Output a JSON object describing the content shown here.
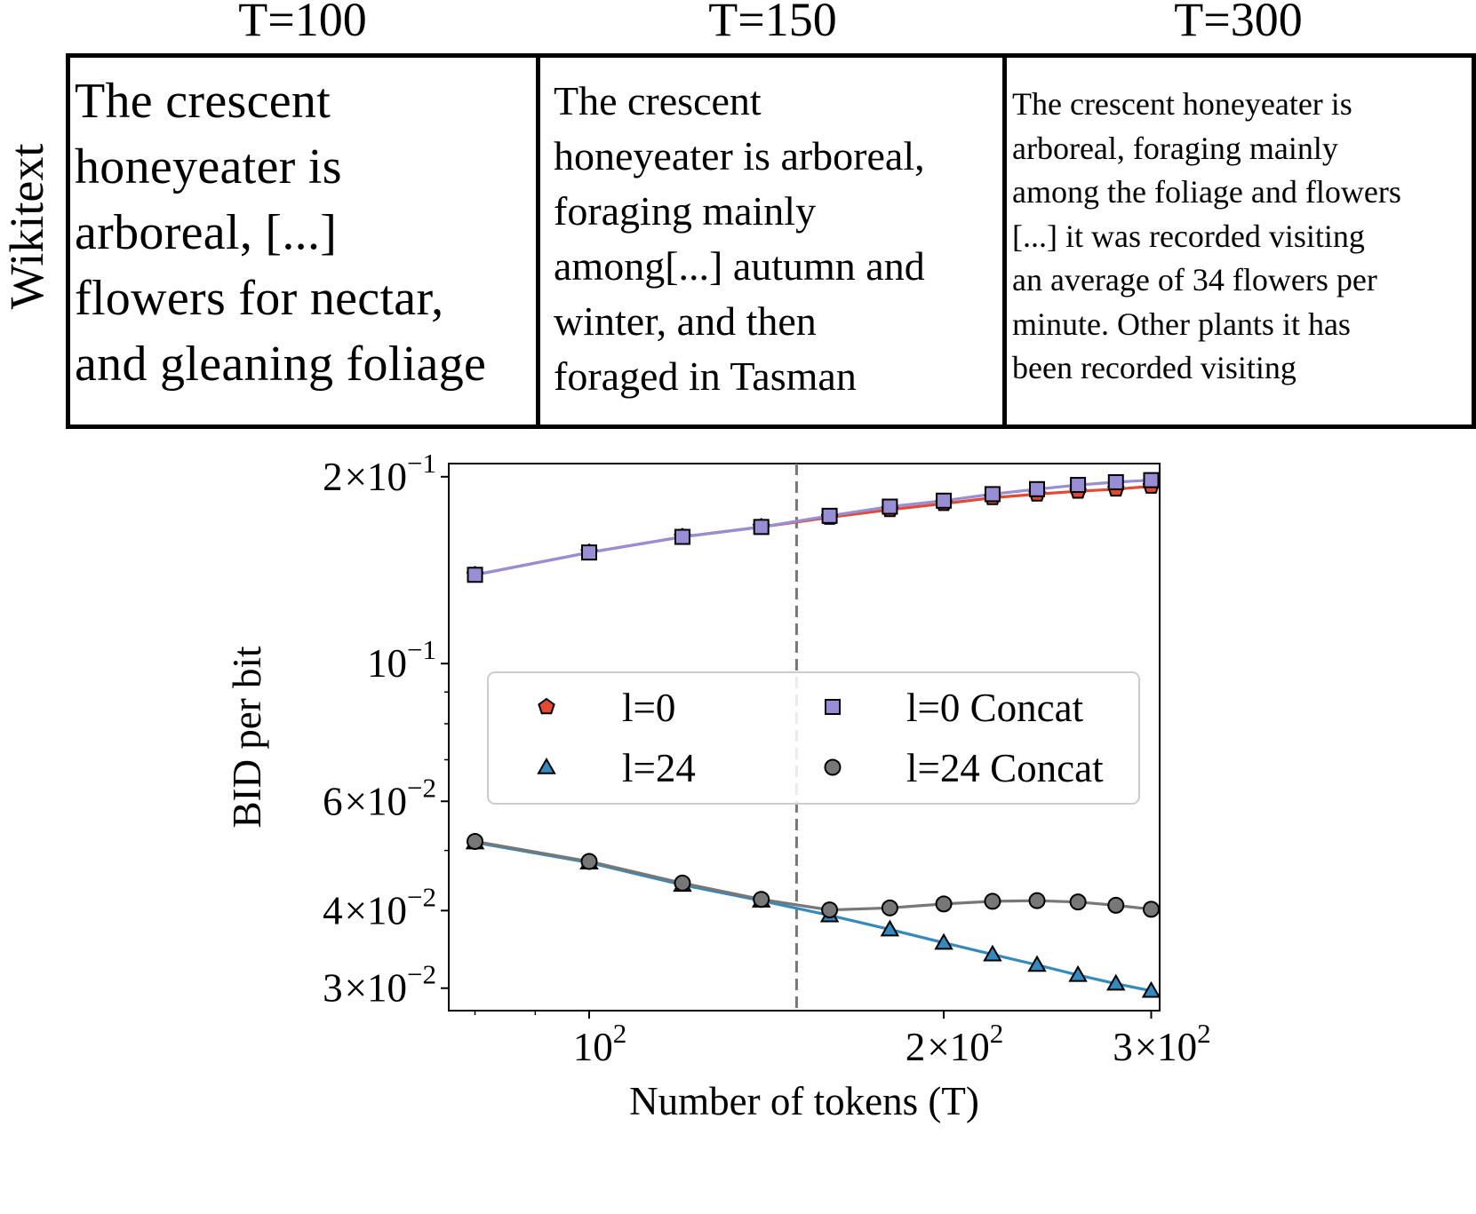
{
  "figure": {
    "row_label": "Wikitext",
    "columns": [
      {
        "title": "T=100",
        "text": " The crescent\nhoneyeater is\narboreal, [...]\nflowers for nectar,\nand gleaning foliage"
      },
      {
        "title": "T=150",
        "text": " The crescent\nhoneyeater is arboreal,\nforaging mainly\namong[...] autumn and\nwinter, and then\nforaged in Tasman"
      },
      {
        "title": "T=300",
        "text": " The crescent honeyeater is\narboreal, foraging mainly\namong the foliage and flowers\n[...]  it was recorded visiting\nan average of 34 flowers per\nminute. Other plants it has\nbeen recorded visiting"
      }
    ]
  },
  "chart_data": {
    "type": "line",
    "title": "",
    "xlabel": "Number of tokens (T)",
    "ylabel": "BID per bit",
    "xscale": "log",
    "yscale": "log",
    "xlim": [
      76,
      305
    ],
    "ylim": [
      0.0276,
      0.21
    ],
    "x": [
      80,
      100,
      120,
      140,
      160,
      180,
      200,
      220,
      240,
      260,
      280,
      300
    ],
    "vline": 150,
    "xticks": [
      {
        "value": 100,
        "mantissa": "",
        "exp": "2"
      },
      {
        "value": 200,
        "mantissa": "2",
        "exp": "2"
      },
      {
        "value": 300,
        "mantissa": "3",
        "exp": "2"
      }
    ],
    "xminor_ticks": [
      80,
      90,
      400
    ],
    "yticks": [
      {
        "value": 0.2,
        "mantissa": "2",
        "exp": "−1"
      },
      {
        "value": 0.1,
        "mantissa": "",
        "exp": "−1"
      },
      {
        "value": 0.06,
        "mantissa": "6",
        "exp": "−2"
      },
      {
        "value": 0.04,
        "mantissa": "4",
        "exp": "−2"
      },
      {
        "value": 0.03,
        "mantissa": "3",
        "exp": "−2"
      }
    ],
    "yminor_ticks": [
      0.05,
      0.07,
      0.08,
      0.09
    ],
    "series": [
      {
        "name": "l=0",
        "color": "#e24a33",
        "marker": "pentagon",
        "values": [
          0.139,
          0.151,
          0.16,
          0.166,
          0.172,
          0.177,
          0.181,
          0.185,
          0.1875,
          0.1895,
          0.191,
          0.193
        ]
      },
      {
        "name": "l=0 Concat",
        "color": "#988ed5",
        "marker": "square",
        "values": [
          0.139,
          0.151,
          0.16,
          0.166,
          0.173,
          0.179,
          0.183,
          0.1875,
          0.191,
          0.194,
          0.196,
          0.1975
        ]
      },
      {
        "name": "l=24",
        "color": "#348abd",
        "marker": "triangle",
        "values": [
          0.0515,
          0.0478,
          0.044,
          0.0415,
          0.0393,
          0.0373,
          0.0355,
          0.034,
          0.0327,
          0.0315,
          0.0305,
          0.0297
        ]
      },
      {
        "name": "l=24 Concat",
        "color": "#777777",
        "marker": "circle",
        "values": [
          0.0517,
          0.048,
          0.0443,
          0.0417,
          0.0401,
          0.0404,
          0.041,
          0.0414,
          0.0415,
          0.0413,
          0.0408,
          0.0402
        ]
      }
    ],
    "legend_location": "center",
    "legend_order": [
      "l=0",
      "l=0 Concat",
      "l=24",
      "l=24 Concat"
    ]
  }
}
